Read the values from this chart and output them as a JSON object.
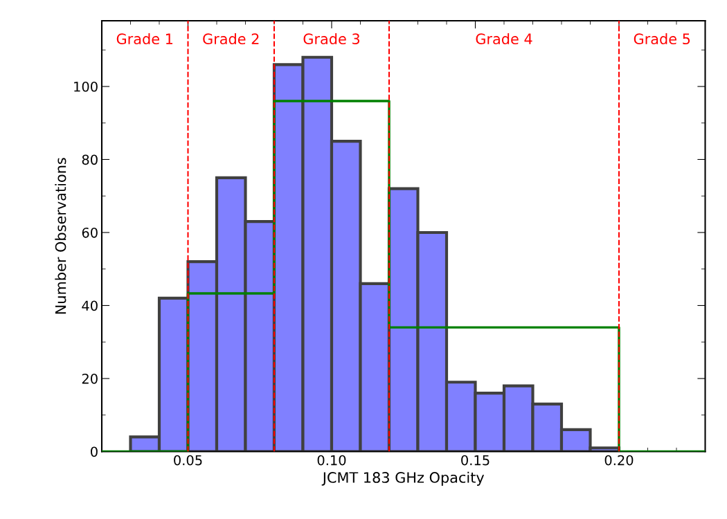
{
  "chart_data": {
    "type": "histogram",
    "xlabel": "JCMT 183 GHz Opacity",
    "ylabel": "Number Observations",
    "bins": [
      0.03,
      0.04,
      0.05,
      0.06,
      0.07,
      0.08,
      0.09,
      0.1,
      0.11,
      0.12,
      0.13,
      0.14,
      0.15,
      0.16,
      0.17,
      0.18,
      0.19,
      0.2
    ],
    "values": [
      4,
      42,
      52,
      75,
      63,
      106,
      108,
      85,
      46,
      72,
      60,
      19,
      16,
      18,
      13,
      6,
      1
    ],
    "color": "#8080ff",
    "series": [
      {
        "type": "step",
        "x": [
          0.02,
          0.05,
          0.08,
          0.12,
          0.2,
          0.23
        ],
        "values": [
          0,
          43.3,
          96,
          34,
          0,
          0
        ],
        "color": "#008000"
      }
    ],
    "xlim": [
      0.02,
      0.23
    ],
    "xticks": [
      {
        "value": 0.05,
        "label": "0.05"
      },
      {
        "value": 0.1,
        "label": "0.10"
      },
      {
        "value": 0.15,
        "label": "0.15"
      },
      {
        "value": 0.2,
        "label": "0.20"
      }
    ],
    "ylim": [
      0,
      118
    ],
    "yticks": [
      0,
      20,
      40,
      60,
      80,
      100
    ],
    "ref_lines": [
      {
        "axis": "x",
        "value": 0.05,
        "color": "#ff0000",
        "line_style": "dashed"
      },
      {
        "axis": "x",
        "value": 0.08,
        "color": "#ff0000",
        "line_style": "dashed"
      },
      {
        "axis": "x",
        "value": 0.12,
        "color": "#ff0000",
        "line_style": "dashed"
      },
      {
        "axis": "x",
        "value": 0.2,
        "color": "#ff0000",
        "line_style": "dashed"
      }
    ],
    "annotations": [
      "Grade 1",
      "Grade 2",
      "Grade 3",
      "Grade 4",
      "Grade 5"
    ]
  }
}
